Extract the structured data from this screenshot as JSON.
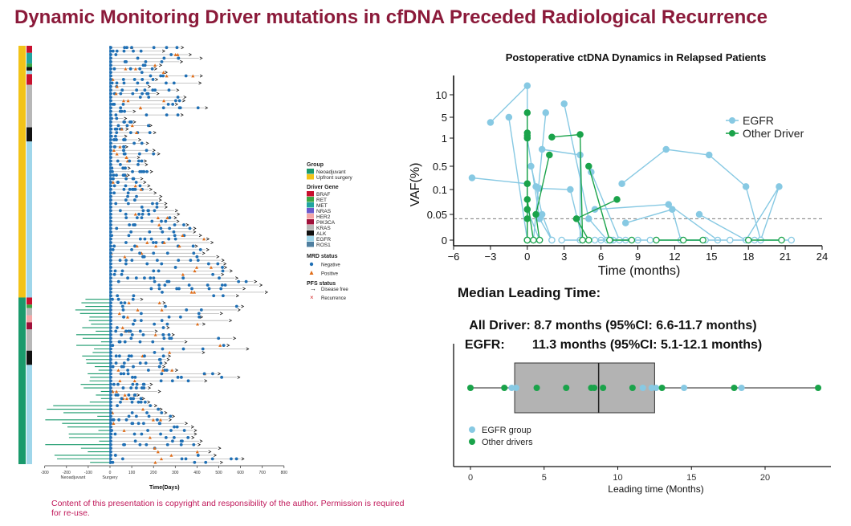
{
  "title": "Dynamic Monitoring Driver mutations in cfDNA Preceded Radiological Recurrence",
  "copyright": "Content of this presentation is copyright and responsibility of the author. Permission is required for re-use.",
  "swimmer": {
    "x_ticks": [
      "-300",
      "-200",
      "-100",
      "0",
      "100",
      "200",
      "300",
      "400",
      "500",
      "600",
      "700",
      "800"
    ],
    "x_tick_values": [
      -300,
      -200,
      -100,
      0,
      100,
      200,
      300,
      400,
      500,
      600,
      700,
      800
    ],
    "xlabel": "Time(Days)",
    "axis_annotations": {
      "neoadjuvant": "Neoadjuvant",
      "surgery": "Surgery"
    },
    "legend": {
      "group_title": "Group",
      "groups": [
        {
          "label": "Neoadjuvant",
          "color": "#1a9a6c"
        },
        {
          "label": "Upfront surgery",
          "color": "#f2c318"
        }
      ],
      "driver_title": "Driver Gene",
      "drivers": [
        {
          "label": "BRAF",
          "color": "#c8102e"
        },
        {
          "label": "RET",
          "color": "#3aa845"
        },
        {
          "label": "MET",
          "color": "#20a5a0"
        },
        {
          "label": "NRAS",
          "color": "#6a5acd"
        },
        {
          "label": "HER2",
          "color": "#f4a6a6"
        },
        {
          "label": "PIK3CA",
          "color": "#a0103a"
        },
        {
          "label": "KRAS",
          "color": "#b7b7b7"
        },
        {
          "label": "ALK",
          "color": "#111111"
        },
        {
          "label": "EGFR",
          "color": "#9fd6ea"
        },
        {
          "label": "ROS1",
          "color": "#4f7fa0"
        }
      ],
      "mrd_title": "MRD status",
      "mrd": [
        {
          "label": "Negative",
          "color": "#1f6fb4"
        },
        {
          "label": "Positive",
          "color": "#e06c17"
        }
      ],
      "pfs_title": "PFS status",
      "pfs": [
        {
          "label": "Disease free",
          "symbol": "→"
        },
        {
          "label": "Recurrence",
          "symbol": "×"
        }
      ]
    }
  },
  "chart_data": [
    {
      "type": "line",
      "title": "Postoperative ctDNA Dynamics in Relapsed Patients",
      "xlabel": "Time (months)",
      "ylabel": "VAF(%)",
      "xlim": [
        -6,
        24
      ],
      "x_ticks": [
        -6,
        -3,
        0,
        3,
        6,
        9,
        12,
        15,
        18,
        21,
        24
      ],
      "y_ticks": [
        {
          "label": "0",
          "value": 0
        },
        {
          "label": "0.05",
          "value": 0.05
        },
        {
          "label": "0.1",
          "value": 0.1
        },
        {
          "label": "0.5",
          "value": 0.5
        },
        {
          "label": "1",
          "value": 1
        },
        {
          "label": "5",
          "value": 5
        },
        {
          "label": "10",
          "value": 10
        }
      ],
      "threshold": 0.04,
      "legend": [
        {
          "label": "EGFR",
          "color": "#87c9e3"
        },
        {
          "label": "Other Driver",
          "color": "#1aa34a"
        }
      ],
      "series": [
        {
          "name": "EGFR",
          "points": [
            [
              -3,
              4
            ],
            [
              0,
              12
            ],
            [
              0,
              0
            ]
          ]
        },
        {
          "name": "EGFR",
          "points": [
            [
              -4.5,
              0.3
            ],
            [
              0,
              0.2
            ],
            [
              0,
              0.06
            ],
            [
              1,
              0
            ]
          ]
        },
        {
          "name": "EGFR",
          "points": [
            [
              -1.5,
              5
            ],
            [
              0,
              0
            ]
          ]
        },
        {
          "name": "EGFR",
          "points": [
            [
              0,
              1
            ],
            [
              1,
              0.04
            ],
            [
              2,
              0
            ]
          ]
        },
        {
          "name": "EGFR",
          "points": [
            [
              0.3,
              0.5
            ],
            [
              0.7,
              0.15
            ],
            [
              1.2,
              0.05
            ],
            [
              2,
              0
            ]
          ]
        },
        {
          "name": "EGFR",
          "points": [
            [
              1.2,
              0.8
            ],
            [
              4.3,
              0.7
            ],
            [
              4.3,
              0
            ]
          ]
        },
        {
          "name": "EGFR",
          "points": [
            [
              1.5,
              6
            ],
            [
              0.5,
              0
            ],
            [
              1,
              0
            ]
          ]
        },
        {
          "name": "EGFR",
          "points": [
            [
              3,
              8
            ],
            [
              5,
              0.04
            ],
            [
              6.5,
              0
            ],
            [
              8,
              0
            ]
          ]
        },
        {
          "name": "EGFR",
          "points": [
            [
              1,
              0.12
            ],
            [
              3.5,
              0.1
            ],
            [
              4.5,
              0
            ],
            [
              6,
              0
            ]
          ]
        },
        {
          "name": "EGFR",
          "points": [
            [
              5.2,
              0.4
            ],
            [
              7.5,
              0
            ],
            [
              9,
              0
            ]
          ]
        },
        {
          "name": "EGFR",
          "points": [
            [
              7.7,
              0.2
            ],
            [
              11.3,
              0.8
            ],
            [
              14.8,
              0.7
            ],
            [
              17.8,
              0.15
            ],
            [
              19,
              0
            ]
          ]
        },
        {
          "name": "EGFR",
          "points": [
            [
              5.5,
              0.06
            ],
            [
              11.5,
              0.07
            ],
            [
              15.5,
              0
            ]
          ]
        },
        {
          "name": "EGFR",
          "points": [
            [
              14,
              0.05
            ],
            [
              17.8,
              0
            ],
            [
              20.5,
              0.15
            ],
            [
              19,
              0
            ]
          ]
        },
        {
          "name": "EGFR",
          "points": [
            [
              8,
              0.03
            ],
            [
              11.8,
              0.06
            ],
            [
              12.5,
              0
            ],
            [
              16.5,
              0
            ],
            [
              18.5,
              0
            ],
            [
              21.5,
              0
            ]
          ]
        },
        {
          "name": "EGFR",
          "points": [
            [
              7,
              0
            ],
            [
              10,
              0
            ],
            [
              14.5,
              0
            ]
          ]
        },
        {
          "name": "EGFR",
          "points": [
            [
              2.8,
              0
            ],
            [
              5.5,
              0
            ],
            [
              6.8,
              0
            ]
          ]
        },
        {
          "name": "Other Driver",
          "points": [
            [
              0,
              6
            ],
            [
              0,
              2
            ],
            [
              0,
              0
            ]
          ]
        },
        {
          "name": "Other Driver",
          "points": [
            [
              0,
              0.2
            ],
            [
              0,
              0.08
            ],
            [
              0.5,
              0
            ]
          ]
        },
        {
          "name": "Other Driver",
          "points": [
            [
              0,
              1
            ],
            [
              0,
              0.06
            ],
            [
              0,
              0
            ]
          ]
        },
        {
          "name": "Other Driver",
          "points": [
            [
              2,
              1.2
            ],
            [
              4.3,
              1.7
            ],
            [
              4.5,
              0
            ]
          ]
        },
        {
          "name": "Other Driver",
          "points": [
            [
              1.8,
              0.7
            ],
            [
              0.7,
              0.05
            ],
            [
              1,
              0
            ]
          ]
        },
        {
          "name": "Other Driver",
          "points": [
            [
              5,
              0.5
            ],
            [
              6.7,
              0
            ],
            [
              8.5,
              0
            ]
          ]
        },
        {
          "name": "Other Driver",
          "points": [
            [
              7.3,
              0.08
            ],
            [
              4,
              0.04
            ],
            [
              5,
              0
            ]
          ]
        },
        {
          "name": "Other Driver",
          "points": [
            [
              0,
              1.5
            ],
            [
              0,
              0.04
            ],
            [
              0,
              0
            ]
          ]
        },
        {
          "name": "Other Driver",
          "points": [
            [
              10.5,
              0
            ],
            [
              12.7,
              0
            ],
            [
              14.3,
              0
            ]
          ]
        },
        {
          "name": "Other Driver",
          "points": [
            [
              18,
              0
            ],
            [
              20.7,
              0
            ]
          ]
        }
      ]
    },
    {
      "type": "box",
      "title": "Median Leading Time:",
      "rows": [
        {
          "label": "All Driver:",
          "value": "8.7 months (95%CI: 6.6-11.7 months)"
        },
        {
          "label": "EGFR:",
          "value": "11.3 months (95%CI: 5.1-12.1 months)"
        }
      ],
      "xlabel": "Leading time (Months)",
      "x_ticks": [
        0,
        5,
        10,
        15,
        20
      ],
      "xlim": [
        -1,
        24
      ],
      "box": {
        "min": 0,
        "q1": 3.0,
        "median": 8.7,
        "q3": 12.5,
        "max": 23.6
      },
      "egfr_points": [
        2.8,
        3.1,
        8.4,
        11.7,
        12.3,
        12.6,
        14.5,
        18.4
      ],
      "other_points": [
        0,
        2.3,
        4.5,
        6.5,
        8.2,
        8.4,
        9.0,
        11.0,
        13.0,
        17.9,
        23.6
      ],
      "legend": [
        {
          "label": "EGFR group",
          "color": "#87c9e3"
        },
        {
          "label": "Other drivers",
          "color": "#1aa34a"
        }
      ]
    }
  ]
}
